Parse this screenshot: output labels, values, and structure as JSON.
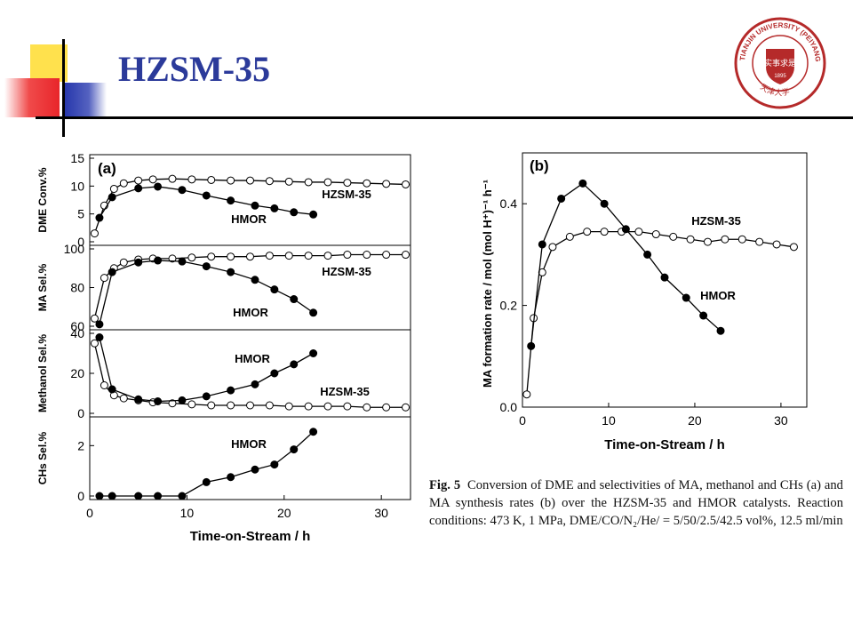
{
  "slide": {
    "title": "HZSM-35",
    "seal_text": "TIANJIN UNIVERSITY (PEIYANG UNIVERSITY)",
    "seal_year": "1895",
    "seal_chars": "天津大学",
    "seal_shield_chars": "实事求是",
    "colors": {
      "title": "#2b3a9a",
      "yellow": "#ffe14d",
      "red": "#e8252a",
      "blue": "#2233aa",
      "seal": "#b52a2a"
    }
  },
  "caption": {
    "fig_label": "Fig. 5",
    "text": "Conversion of DME and selectivities of MA, methanol and CHs (a) and MA synthesis rates (b) over the HZSM-35 and HMOR catalysts. Reaction conditions: 473 K, 1 MPa, DME/CO/N₂/He/ = 5/50/2.5/42.5 vol%, 12.5 ml/min"
  },
  "chart_data": [
    {
      "type": "line",
      "panel": "(a)",
      "xlabel": "Time-on-Stream / h",
      "xlim": [
        0,
        33
      ],
      "xticks": [
        0,
        10,
        20,
        30
      ],
      "subplots": [
        {
          "ylabel": "DME Conv.%",
          "ylim": [
            0,
            15
          ],
          "yticks": [
            0,
            5,
            10,
            15
          ],
          "series": [
            {
              "name": "HZSM-35",
              "marker": "open",
              "x": [
                0.5,
                1.5,
                2.5,
                3.5,
                5,
                6.5,
                8.5,
                10.5,
                12.5,
                14.5,
                16.5,
                18.5,
                20.5,
                22.5,
                24.5,
                26.5,
                28.5,
                30.5,
                32.5
              ],
              "y": [
                1.5,
                6.5,
                9.5,
                10.5,
                11,
                11.2,
                11.3,
                11.2,
                11.1,
                11,
                11,
                10.9,
                10.8,
                10.7,
                10.7,
                10.6,
                10.5,
                10.4,
                10.3
              ]
            },
            {
              "name": "HMOR",
              "marker": "filled",
              "x": [
                1,
                2.3,
                5,
                7,
                9.5,
                12,
                14.5,
                17,
                19,
                21,
                23
              ],
              "y": [
                4.3,
                8,
                9.6,
                9.9,
                9.3,
                8.3,
                7.4,
                6.5,
                6,
                5.3,
                4.9
              ]
            }
          ],
          "labels": [
            {
              "text": "HZSM-35",
              "series": "HZSM-35"
            },
            {
              "text": "HMOR",
              "series": "HMOR"
            }
          ]
        },
        {
          "ylabel": "MA Sel.%",
          "ylim": [
            60,
            100
          ],
          "yticks": [
            60,
            80,
            100
          ],
          "series": [
            {
              "name": "HZSM-35",
              "marker": "open",
              "x": [
                0.5,
                1.5,
                2.5,
                3.5,
                5,
                6.5,
                8.5,
                10.5,
                12.5,
                14.5,
                16.5,
                18.5,
                20.5,
                22.5,
                24.5,
                26.5,
                28.5,
                30.5,
                32.5
              ],
              "y": [
                64,
                85,
                90,
                93,
                94.5,
                95,
                95,
                95.5,
                96,
                96,
                96,
                96.5,
                96.5,
                96.5,
                96.5,
                97,
                97,
                97,
                97
              ]
            },
            {
              "name": "HMOR",
              "marker": "filled",
              "x": [
                1,
                2.3,
                5,
                7,
                9.5,
                12,
                14.5,
                17,
                19,
                21,
                23
              ],
              "y": [
                61,
                88,
                93,
                94,
                93.5,
                91,
                88,
                84,
                79,
                74,
                67
              ]
            }
          ],
          "labels": [
            {
              "text": "HZSM-35",
              "series": "HZSM-35"
            },
            {
              "text": "HMOR",
              "series": "HMOR"
            }
          ]
        },
        {
          "ylabel": "Methanol Sel.%",
          "ylim": [
            0,
            40
          ],
          "yticks": [
            0,
            20,
            40
          ],
          "series": [
            {
              "name": "HZSM-35",
              "marker": "open",
              "x": [
                0.5,
                1.5,
                2.5,
                3.5,
                5,
                6.5,
                8.5,
                10.5,
                12.5,
                14.5,
                16.5,
                18.5,
                20.5,
                22.5,
                24.5,
                26.5,
                28.5,
                30.5,
                32.5
              ],
              "y": [
                35,
                14,
                9,
                7.5,
                6.5,
                5.5,
                5,
                4.5,
                4,
                4,
                4,
                4,
                3.5,
                3.5,
                3.5,
                3.5,
                3,
                3,
                3
              ]
            },
            {
              "name": "HMOR",
              "marker": "filled",
              "x": [
                1,
                2.3,
                5,
                7,
                9.5,
                12,
                14.5,
                17,
                19,
                21,
                23
              ],
              "y": [
                38,
                12,
                7,
                6,
                6.5,
                8.5,
                11.5,
                14.5,
                20,
                24.5,
                30
              ]
            }
          ],
          "labels": [
            {
              "text": "HMOR",
              "series": "HMOR"
            },
            {
              "text": "HZSM-35",
              "series": "HZSM-35"
            }
          ]
        },
        {
          "ylabel": "CHs Sel.%",
          "ylim": [
            0,
            3
          ],
          "yticks": [
            0,
            2
          ],
          "series": [
            {
              "name": "HMOR",
              "marker": "filled",
              "x": [
                1,
                2.3,
                5,
                7,
                9.5,
                12,
                14.5,
                17,
                19,
                21,
                23
              ],
              "y": [
                0,
                0,
                0,
                0,
                0,
                0.55,
                0.75,
                1.05,
                1.25,
                1.85,
                2.55
              ]
            }
          ],
          "labels": [
            {
              "text": "HMOR",
              "series": "HMOR"
            }
          ]
        }
      ]
    },
    {
      "type": "line",
      "panel": "(b)",
      "xlabel": "Time-on-Stream / h",
      "ylabel": "MA formation rate / mol (mol H⁺)⁻¹ h⁻¹",
      "xlim": [
        0,
        33
      ],
      "ylim": [
        0,
        0.5
      ],
      "xticks": [
        0,
        10,
        20,
        30
      ],
      "yticks": [
        0.0,
        0.2,
        0.4
      ],
      "series": [
        {
          "name": "HZSM-35",
          "marker": "open",
          "x": [
            0.5,
            1.3,
            2.3,
            3.5,
            5.5,
            7.5,
            9.5,
            11.5,
            13.5,
            15.5,
            17.5,
            19.5,
            21.5,
            23.5,
            25.5,
            27.5,
            29.5,
            31.5
          ],
          "y": [
            0.025,
            0.175,
            0.265,
            0.315,
            0.335,
            0.345,
            0.345,
            0.345,
            0.345,
            0.34,
            0.335,
            0.33,
            0.325,
            0.33,
            0.33,
            0.325,
            0.32,
            0.315
          ]
        },
        {
          "name": "HMOR",
          "marker": "filled",
          "x": [
            1,
            2.3,
            4.5,
            7,
            9.5,
            12,
            14.5,
            16.5,
            19,
            21,
            23
          ],
          "y": [
            0.12,
            0.32,
            0.41,
            0.44,
            0.4,
            0.35,
            0.3,
            0.255,
            0.215,
            0.18,
            0.15
          ]
        }
      ],
      "labels": [
        {
          "text": "HZSM-35",
          "series": "HZSM-35"
        },
        {
          "text": "HMOR",
          "series": "HMOR"
        }
      ]
    }
  ]
}
